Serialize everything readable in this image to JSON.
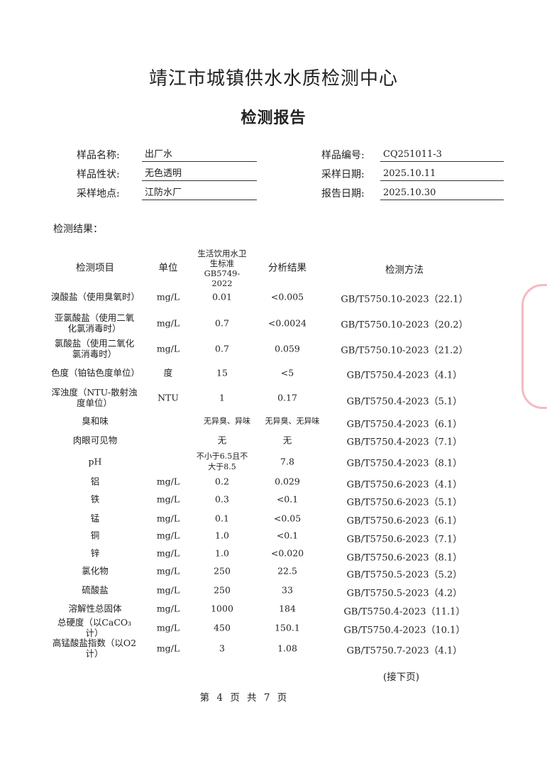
{
  "title": "靖江市城镇供水水质检测中心",
  "subtitle": "检测报告",
  "fields_left": [
    {
      "label": "样品名称:",
      "value": "出厂水"
    },
    {
      "label": "样品性状:",
      "value": "无色透明"
    },
    {
      "label": "采样地点:",
      "value": "江防水厂"
    }
  ],
  "fields_right": [
    {
      "label": "样品编号:",
      "value": "CQ251011-3"
    },
    {
      "label": "采样日期:",
      "value": "2025.10.11"
    },
    {
      "label": "报告日期:",
      "value": "2025.10.30"
    }
  ],
  "section_label": "检测结果：",
  "table": {
    "headers": {
      "item": "检测项目",
      "unit": "单位",
      "standard": "生活饮用水卫生标准GB5749-2022",
      "result": "分析结果",
      "method": "检测方法"
    },
    "rows": [
      {
        "item": "溴酸盐（使用臭氧时）",
        "unit": "mg/L",
        "standard": "0.01",
        "result": "<0.005",
        "method": "GB/T5750.10-2023（22.1）"
      },
      {
        "item": "亚氯酸盐（使用二氧化氯消毒时）",
        "unit": "mg/L",
        "standard": "0.7",
        "result": "<0.0024",
        "method": "GB/T5750.10-2023（20.2）"
      },
      {
        "item": "氯酸盐（使用二氧化氯消毒时）",
        "unit": "mg/L",
        "standard": "0.7",
        "result": "0.059",
        "method": "GB/T5750.10-2023（21.2）"
      },
      {
        "item": "色度（铂钴色度单位）",
        "unit": "度",
        "standard": "15",
        "result": "<5",
        "method": "GB/T5750.4-2023（4.1）"
      },
      {
        "item": "浑浊度（NTU-散射浊度单位）",
        "unit": "NTU",
        "standard": "1",
        "result": "0.17",
        "method": "GB/T5750.4-2023（5.1）"
      },
      {
        "item": "臭和味",
        "unit": "",
        "standard": "无异臭、异味",
        "result": "无异臭、无异味",
        "method": "GB/T5750.4-2023（6.1）"
      },
      {
        "item": "肉眼可见物",
        "unit": "",
        "standard": "无",
        "result": "无",
        "method": "GB/T5750.4-2023（7.1）"
      },
      {
        "item": "pH",
        "unit": "",
        "standard": "不小于6.5且不大于8.5",
        "result": "7.8",
        "method": "GB/T5750.4-2023（8.1）"
      },
      {
        "item": "铝",
        "unit": "mg/L",
        "standard": "0.2",
        "result": "0.029",
        "method": "GB/T5750.6-2023（4.1）"
      },
      {
        "item": "铁",
        "unit": "mg/L",
        "standard": "0.3",
        "result": "<0.1",
        "method": "GB/T5750.6-2023（5.1）"
      },
      {
        "item": "锰",
        "unit": "mg/L",
        "standard": "0.1",
        "result": "<0.05",
        "method": "GB/T5750.6-2023（6.1）"
      },
      {
        "item": "铜",
        "unit": "mg/L",
        "standard": "1.0",
        "result": "<0.1",
        "method": "GB/T5750.6-2023（7.1）"
      },
      {
        "item": "锌",
        "unit": "mg/L",
        "standard": "1.0",
        "result": "<0.020",
        "method": "GB/T5750.6-2023（8.1）"
      },
      {
        "item": "氯化物",
        "unit": "mg/L",
        "standard": "250",
        "result": "22.5",
        "method": "GB/T5750.5-2023（5.2）"
      },
      {
        "item": "硫酸盐",
        "unit": "mg/L",
        "standard": "250",
        "result": "33",
        "method": "GB/T5750.5-2023（4.2）"
      },
      {
        "item": "溶解性总固体",
        "unit": "mg/L",
        "standard": "1000",
        "result": "184",
        "method": "GB/T5750.4-2023（11.1）"
      },
      {
        "item": "总硬度（以CaCO₃计）",
        "unit": "mg/L",
        "standard": "450",
        "result": "150.1",
        "method": "GB/T5750.4-2023（10.1）"
      },
      {
        "item": "高锰酸盐指数（以O2计）",
        "unit": "mg/L",
        "standard": "3",
        "result": "1.08",
        "method": "GB/T5750.7-2023（4.1）"
      }
    ]
  },
  "continued_label": "(接下页)",
  "footer": "第 4 页 共 7 页",
  "colors": {
    "text": "#222222",
    "stamp": "#dc3c50"
  }
}
